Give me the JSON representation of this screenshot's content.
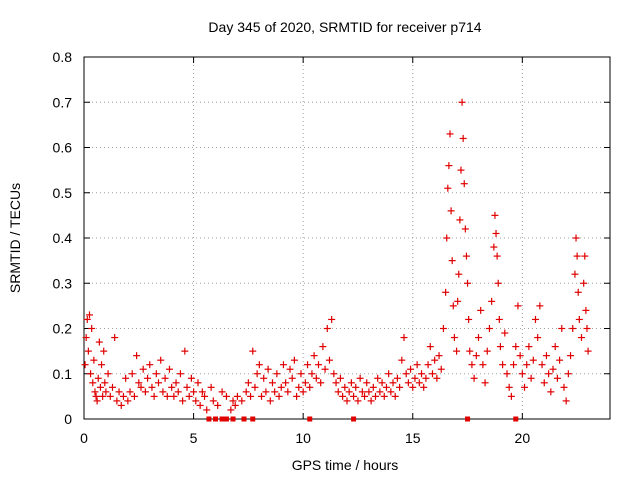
{
  "chart_data": {
    "type": "scatter",
    "title": "Day 345 of 2020, SRMTID for receiver p714",
    "xlabel": "GPS time / hours",
    "ylabel": "SRMTID / TECUs",
    "xlim": [
      0,
      24
    ],
    "ylim": [
      0,
      0.8
    ],
    "xticks": [
      "0",
      "5",
      "10",
      "15",
      "20"
    ],
    "xtick_values": [
      0,
      5,
      10,
      15,
      20
    ],
    "yticks": [
      "0",
      "0.1",
      "0.2",
      "0.3",
      "0.4",
      "0.5",
      "0.6",
      "0.7",
      "0.8"
    ],
    "ytick_values": [
      0,
      0.1,
      0.2,
      0.3,
      0.4,
      0.5,
      0.6,
      0.7,
      0.8
    ],
    "grid": true,
    "marker": "+",
    "color": "#e00000",
    "series": [
      {
        "name": "SRMTID",
        "points": [
          [
            0.05,
            0.12
          ],
          [
            0.1,
            0.18
          ],
          [
            0.15,
            0.22
          ],
          [
            0.2,
            0.15
          ],
          [
            0.25,
            0.23
          ],
          [
            0.3,
            0.1
          ],
          [
            0.35,
            0.2
          ],
          [
            0.4,
            0.08
          ],
          [
            0.45,
            0.13
          ],
          [
            0.5,
            0.06
          ],
          [
            0.55,
            0.05
          ],
          [
            0.6,
            0.04
          ],
          [
            0.65,
            0.09
          ],
          [
            0.7,
            0.17
          ],
          [
            0.75,
            0.07
          ],
          [
            0.8,
            0.12
          ],
          [
            0.85,
            0.05
          ],
          [
            0.9,
            0.15
          ],
          [
            0.95,
            0.08
          ],
          [
            1.0,
            0.06
          ],
          [
            1.1,
            0.1
          ],
          [
            1.2,
            0.05
          ],
          [
            1.3,
            0.07
          ],
          [
            1.4,
            0.18
          ],
          [
            1.5,
            0.04
          ],
          [
            1.6,
            0.06
          ],
          [
            1.7,
            0.03
          ],
          [
            1.8,
            0.05
          ],
          [
            1.9,
            0.09
          ],
          [
            2.0,
            0.04
          ],
          [
            2.1,
            0.06
          ],
          [
            2.2,
            0.1
          ],
          [
            2.3,
            0.05
          ],
          [
            2.4,
            0.14
          ],
          [
            2.5,
            0.08
          ],
          [
            2.6,
            0.07
          ],
          [
            2.7,
            0.11
          ],
          [
            2.8,
            0.06
          ],
          [
            2.9,
            0.09
          ],
          [
            3.0,
            0.12
          ],
          [
            3.1,
            0.07
          ],
          [
            3.2,
            0.05
          ],
          [
            3.3,
            0.1
          ],
          [
            3.4,
            0.08
          ],
          [
            3.5,
            0.13
          ],
          [
            3.6,
            0.06
          ],
          [
            3.7,
            0.09
          ],
          [
            3.8,
            0.05
          ],
          [
            3.9,
            0.11
          ],
          [
            4.0,
            0.07
          ],
          [
            4.1,
            0.05
          ],
          [
            4.2,
            0.08
          ],
          [
            4.3,
            0.06
          ],
          [
            4.4,
            0.1
          ],
          [
            4.5,
            0.04
          ],
          [
            4.6,
            0.15
          ],
          [
            4.7,
            0.07
          ],
          [
            4.8,
            0.05
          ],
          [
            4.9,
            0.09
          ],
          [
            5.0,
            0.06
          ],
          [
            5.1,
            0.04
          ],
          [
            5.2,
            0.08
          ],
          [
            5.3,
            0.03
          ],
          [
            5.4,
            0.06
          ],
          [
            5.5,
            0.05
          ],
          [
            5.6,
            0.02
          ],
          [
            5.8,
            0.07
          ],
          [
            5.9,
            0.04
          ],
          [
            6.1,
            0.03
          ],
          [
            6.3,
            0.06
          ],
          [
            6.5,
            0.05
          ],
          [
            6.7,
            0.02
          ],
          [
            6.8,
            0.04
          ],
          [
            6.9,
            0.03
          ],
          [
            7.0,
            0.05
          ],
          [
            7.2,
            0.04
          ],
          [
            7.4,
            0.06
          ],
          [
            7.5,
            0.08
          ],
          [
            7.6,
            0.05
          ],
          [
            7.7,
            0.15
          ],
          [
            7.8,
            0.07
          ],
          [
            7.9,
            0.1
          ],
          [
            8.0,
            0.12
          ],
          [
            8.1,
            0.05
          ],
          [
            8.2,
            0.09
          ],
          [
            8.3,
            0.06
          ],
          [
            8.4,
            0.11
          ],
          [
            8.5,
            0.04
          ],
          [
            8.6,
            0.08
          ],
          [
            8.7,
            0.06
          ],
          [
            8.8,
            0.1
          ],
          [
            8.9,
            0.05
          ],
          [
            9.0,
            0.07
          ],
          [
            9.1,
            0.12
          ],
          [
            9.2,
            0.08
          ],
          [
            9.3,
            0.06
          ],
          [
            9.4,
            0.11
          ],
          [
            9.5,
            0.09
          ],
          [
            9.6,
            0.13
          ],
          [
            9.7,
            0.05
          ],
          [
            9.8,
            0.07
          ],
          [
            9.9,
            0.1
          ],
          [
            10.0,
            0.06
          ],
          [
            10.1,
            0.08
          ],
          [
            10.2,
            0.12
          ],
          [
            10.3,
            0.07
          ],
          [
            10.4,
            0.1
          ],
          [
            10.5,
            0.14
          ],
          [
            10.6,
            0.09
          ],
          [
            10.7,
            0.12
          ],
          [
            10.8,
            0.08
          ],
          [
            10.9,
            0.16
          ],
          [
            11.0,
            0.11
          ],
          [
            11.1,
            0.2
          ],
          [
            11.2,
            0.13
          ],
          [
            11.3,
            0.22
          ],
          [
            11.4,
            0.1
          ],
          [
            11.5,
            0.08
          ],
          [
            11.6,
            0.06
          ],
          [
            11.7,
            0.09
          ],
          [
            11.8,
            0.05
          ],
          [
            11.9,
            0.07
          ],
          [
            12.0,
            0.04
          ],
          [
            12.1,
            0.06
          ],
          [
            12.2,
            0.08
          ],
          [
            12.3,
            0.05
          ],
          [
            12.4,
            0.07
          ],
          [
            12.5,
            0.04
          ],
          [
            12.6,
            0.09
          ],
          [
            12.7,
            0.06
          ],
          [
            12.8,
            0.05
          ],
          [
            12.9,
            0.08
          ],
          [
            13.0,
            0.06
          ],
          [
            13.1,
            0.04
          ],
          [
            13.2,
            0.07
          ],
          [
            13.3,
            0.05
          ],
          [
            13.4,
            0.09
          ],
          [
            13.5,
            0.06
          ],
          [
            13.6,
            0.08
          ],
          [
            13.7,
            0.05
          ],
          [
            13.8,
            0.07
          ],
          [
            13.9,
            0.1
          ],
          [
            14.0,
            0.06
          ],
          [
            14.1,
            0.08
          ],
          [
            14.2,
            0.05
          ],
          [
            14.3,
            0.09
          ],
          [
            14.4,
            0.07
          ],
          [
            14.5,
            0.13
          ],
          [
            14.6,
            0.18
          ],
          [
            14.7,
            0.1
          ],
          [
            14.8,
            0.08
          ],
          [
            14.9,
            0.11
          ],
          [
            15.0,
            0.07
          ],
          [
            15.1,
            0.09
          ],
          [
            15.2,
            0.12
          ],
          [
            15.3,
            0.08
          ],
          [
            15.4,
            0.1
          ],
          [
            15.5,
            0.07
          ],
          [
            15.6,
            0.09
          ],
          [
            15.7,
            0.12
          ],
          [
            15.8,
            0.16
          ],
          [
            15.9,
            0.1
          ],
          [
            16.0,
            0.13
          ],
          [
            16.1,
            0.09
          ],
          [
            16.2,
            0.14
          ],
          [
            16.3,
            0.11
          ],
          [
            16.4,
            0.2
          ],
          [
            16.5,
            0.28
          ],
          [
            16.55,
            0.4
          ],
          [
            16.6,
            0.51
          ],
          [
            16.65,
            0.56
          ],
          [
            16.7,
            0.63
          ],
          [
            16.75,
            0.46
          ],
          [
            16.8,
            0.35
          ],
          [
            16.85,
            0.25
          ],
          [
            16.9,
            0.18
          ],
          [
            17.0,
            0.15
          ],
          [
            17.05,
            0.26
          ],
          [
            17.1,
            0.32
          ],
          [
            17.15,
            0.44
          ],
          [
            17.2,
            0.55
          ],
          [
            17.25,
            0.7
          ],
          [
            17.3,
            0.62
          ],
          [
            17.35,
            0.52
          ],
          [
            17.4,
            0.42
          ],
          [
            17.45,
            0.36
          ],
          [
            17.5,
            0.3
          ],
          [
            17.55,
            0.22
          ],
          [
            17.6,
            0.15
          ],
          [
            17.7,
            0.12
          ],
          [
            17.8,
            0.09
          ],
          [
            17.9,
            0.14
          ],
          [
            18.0,
            0.18
          ],
          [
            18.1,
            0.24
          ],
          [
            18.2,
            0.12
          ],
          [
            18.3,
            0.08
          ],
          [
            18.4,
            0.15
          ],
          [
            18.5,
            0.2
          ],
          [
            18.6,
            0.26
          ],
          [
            18.7,
            0.38
          ],
          [
            18.75,
            0.45
          ],
          [
            18.8,
            0.41
          ],
          [
            18.85,
            0.36
          ],
          [
            18.9,
            0.3
          ],
          [
            18.95,
            0.22
          ],
          [
            19.0,
            0.16
          ],
          [
            19.1,
            0.12
          ],
          [
            19.2,
            0.19
          ],
          [
            19.3,
            0.1
          ],
          [
            19.4,
            0.07
          ],
          [
            19.5,
            0.05
          ],
          [
            19.6,
            0.12
          ],
          [
            19.7,
            0.16
          ],
          [
            19.8,
            0.25
          ],
          [
            19.9,
            0.14
          ],
          [
            20.0,
            0.1
          ],
          [
            20.1,
            0.07
          ],
          [
            20.2,
            0.12
          ],
          [
            20.3,
            0.16
          ],
          [
            20.4,
            0.09
          ],
          [
            20.5,
            0.13
          ],
          [
            20.6,
            0.22
          ],
          [
            20.7,
            0.18
          ],
          [
            20.8,
            0.25
          ],
          [
            20.9,
            0.12
          ],
          [
            21.0,
            0.08
          ],
          [
            21.1,
            0.14
          ],
          [
            21.2,
            0.1
          ],
          [
            21.3,
            0.06
          ],
          [
            21.4,
            0.11
          ],
          [
            21.5,
            0.16
          ],
          [
            21.6,
            0.09
          ],
          [
            21.7,
            0.13
          ],
          [
            21.8,
            0.2
          ],
          [
            21.9,
            0.07
          ],
          [
            22.0,
            0.04
          ],
          [
            22.1,
            0.1
          ],
          [
            22.2,
            0.14
          ],
          [
            22.3,
            0.2
          ],
          [
            22.4,
            0.32
          ],
          [
            22.45,
            0.4
          ],
          [
            22.5,
            0.36
          ],
          [
            22.55,
            0.28
          ],
          [
            22.6,
            0.22
          ],
          [
            22.7,
            0.18
          ],
          [
            22.8,
            0.3
          ],
          [
            22.85,
            0.36
          ],
          [
            22.9,
            0.24
          ],
          [
            22.95,
            0.2
          ],
          [
            23.0,
            0.15
          ]
        ]
      }
    ],
    "gap_markers_x": [
      5.7,
      6.0,
      6.3,
      6.5,
      6.8,
      7.3,
      7.7,
      10.3,
      12.3,
      17.5,
      19.7
    ]
  }
}
